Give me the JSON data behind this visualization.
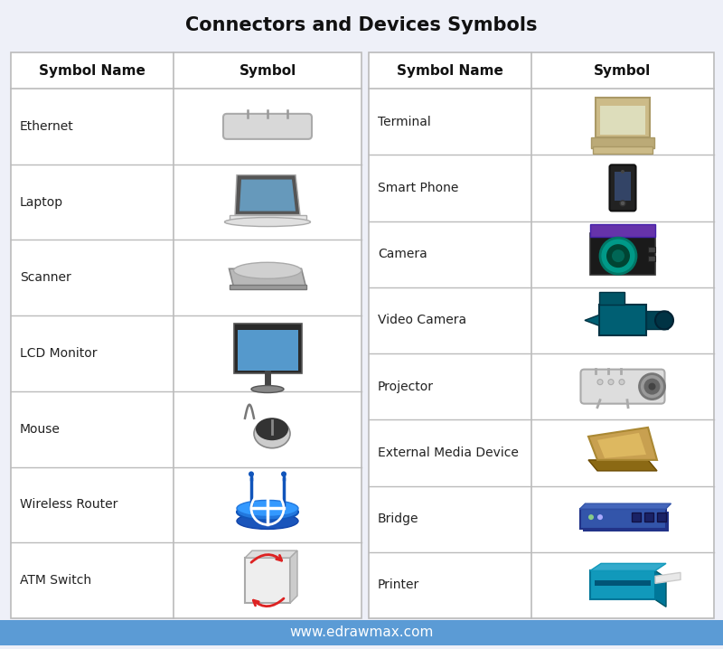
{
  "title": "Connectors and Devices Symbols",
  "background_color": "#eef0f8",
  "footer_bg": "#5b9bd5",
  "footer_text": "www.edrawmax.com",
  "footer_text_color": "#ffffff",
  "border_color": "#bbbbbb",
  "title_fontsize": 15,
  "header_fontsize": 11,
  "cell_fontsize": 10,
  "left_items": [
    "Ethernet",
    "Laptop",
    "Scanner",
    "LCD Monitor",
    "Mouse",
    "Wireless Router",
    "ATM Switch"
  ],
  "right_items": [
    "Terminal",
    "Smart Phone",
    "Camera",
    "Video Camera",
    "Projector",
    "External Media Device",
    "Bridge",
    "Printer"
  ]
}
